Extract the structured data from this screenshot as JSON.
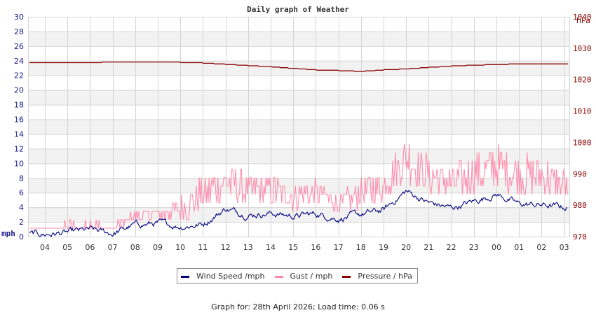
{
  "page": {
    "footer_text": "Graph for: 28th April 2026; Load time: 0.06 s"
  },
  "chart_data": {
    "type": "line",
    "title": "Daily graph of Weather",
    "xlabel": "",
    "ylabel_left": "mph",
    "ylabel_right": "hPa",
    "ylim_left": [
      0,
      30
    ],
    "ylim_right": [
      970,
      1040
    ],
    "yticks_left": [
      0,
      2,
      4,
      6,
      8,
      10,
      12,
      14,
      16,
      18,
      20,
      22,
      24,
      26,
      28,
      30
    ],
    "yticks_right": [
      970,
      980,
      990,
      1000,
      1010,
      1020,
      1030,
      1040
    ],
    "categories": [
      "04",
      "05",
      "06",
      "07",
      "08",
      "09",
      "10",
      "11",
      "12",
      "13",
      "14",
      "15",
      "16",
      "17",
      "18",
      "19",
      "20",
      "21",
      "22",
      "23",
      "00",
      "01",
      "02",
      "03"
    ],
    "grid": true,
    "legend_position": "bottom",
    "colors": {
      "wind": "#000080",
      "gust": "#ff88aa",
      "pressure": "#8b0000",
      "grid": "#d4d4d4",
      "band": "#f2f2f2",
      "left_axis": "#1a1a8c",
      "right_axis": "#8b0000"
    },
    "series": [
      {
        "name": "Wind Speed /mph",
        "axis": "left",
        "values": [
          0.3,
          0.5,
          0.9,
          0.4,
          1.6,
          1.8,
          1.4,
          1.7,
          3.8,
          3.0,
          3.2,
          2.8,
          3.1,
          2.5,
          3.0,
          3.6,
          6.2,
          4.6,
          3.9,
          4.8,
          5.8,
          4.4,
          4.3,
          4.0
        ]
      },
      {
        "name": "Gust / mph",
        "axis": "left",
        "values": [
          1.2,
          1.6,
          1.8,
          1.4,
          3.2,
          3.4,
          4.8,
          7.0,
          8.6,
          7.2,
          7.4,
          6.6,
          7.0,
          5.0,
          6.8,
          8.2,
          12.5,
          9.6,
          8.4,
          9.8,
          11.2,
          9.8,
          9.6,
          8.0
        ]
      },
      {
        "name": "Pressure / hPa",
        "axis": "right",
        "values": [
          1025.4,
          1025.3,
          1025.4,
          1025.6,
          1025.6,
          1025.6,
          1025.5,
          1025.3,
          1024.9,
          1024.5,
          1024.1,
          1023.6,
          1023.1,
          1022.9,
          1022.6,
          1023.1,
          1023.4,
          1023.9,
          1024.3,
          1024.6,
          1024.8,
          1025.0,
          1025.0,
          1024.9
        ]
      }
    ]
  },
  "legend": {
    "items": [
      {
        "label": "Wind Speed /mph",
        "color": "#000080"
      },
      {
        "label": "Gust / mph",
        "color": "#ff88aa"
      },
      {
        "label": "Pressure / hPa",
        "color": "#8b0000"
      }
    ]
  }
}
